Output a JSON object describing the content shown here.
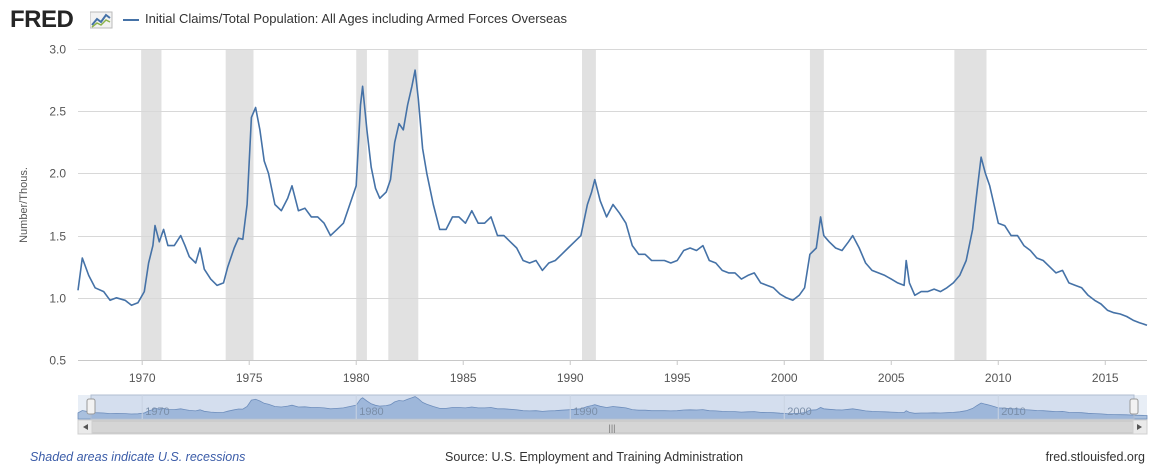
{
  "header": {
    "logo_text": "FRED",
    "legend_label": "Initial Claims/Total Population: All Ages including Armed Forces Overseas"
  },
  "footer": {
    "recession_note": "Shaded areas indicate U.S. recessions",
    "source": "Source: U.S. Employment and Training Administration",
    "site": "fred.stlouisfed.org"
  },
  "colors": {
    "line": "#4572a7",
    "recession": "#e1e1e1",
    "grid": "#d8d8d8",
    "navigator_fill": "#a9c0de"
  },
  "chart_data": {
    "type": "line",
    "title": "",
    "xlabel": "",
    "ylabel": "Number/Thous.",
    "ylim": [
      0.5,
      3.0
    ],
    "xlim": [
      1967.0,
      2016.95
    ],
    "y_ticks": [
      "0.5",
      "1.0",
      "1.5",
      "2.0",
      "2.5",
      "3.0"
    ],
    "x_ticks": [
      "1970",
      "1975",
      "1980",
      "1985",
      "1990",
      "1995",
      "2000",
      "2005",
      "2010",
      "2015"
    ],
    "navigator_ticks": [
      "1970",
      "1980",
      "1990",
      "2000",
      "2010"
    ],
    "grid": "horizontal",
    "recessions": [
      [
        1969.95,
        1970.9
      ],
      [
        1973.9,
        1975.2
      ],
      [
        1980.0,
        1980.5
      ],
      [
        1981.5,
        1982.9
      ],
      [
        1990.55,
        1991.2
      ],
      [
        2001.2,
        2001.85
      ],
      [
        2007.95,
        2009.45
      ]
    ],
    "series": [
      {
        "name": "Initial Claims/Total Population: All Ages including Armed Forces Overseas",
        "points": [
          [
            1967.0,
            1.06
          ],
          [
            1967.2,
            1.32
          ],
          [
            1967.5,
            1.18
          ],
          [
            1967.8,
            1.08
          ],
          [
            1968.2,
            1.05
          ],
          [
            1968.5,
            0.98
          ],
          [
            1968.8,
            1.0
          ],
          [
            1969.2,
            0.98
          ],
          [
            1969.5,
            0.94
          ],
          [
            1969.8,
            0.96
          ],
          [
            1970.1,
            1.05
          ],
          [
            1970.3,
            1.28
          ],
          [
            1970.5,
            1.42
          ],
          [
            1970.6,
            1.58
          ],
          [
            1970.8,
            1.45
          ],
          [
            1971.0,
            1.55
          ],
          [
            1971.2,
            1.42
          ],
          [
            1971.5,
            1.42
          ],
          [
            1971.8,
            1.5
          ],
          [
            1972.0,
            1.42
          ],
          [
            1972.2,
            1.33
          ],
          [
            1972.5,
            1.28
          ],
          [
            1972.7,
            1.4
          ],
          [
            1972.9,
            1.23
          ],
          [
            1973.2,
            1.15
          ],
          [
            1973.5,
            1.1
          ],
          [
            1973.8,
            1.12
          ],
          [
            1974.0,
            1.25
          ],
          [
            1974.3,
            1.4
          ],
          [
            1974.5,
            1.48
          ],
          [
            1974.7,
            1.47
          ],
          [
            1974.9,
            1.75
          ],
          [
            1975.1,
            2.45
          ],
          [
            1975.3,
            2.53
          ],
          [
            1975.5,
            2.35
          ],
          [
            1975.7,
            2.1
          ],
          [
            1975.9,
            2.0
          ],
          [
            1976.2,
            1.75
          ],
          [
            1976.5,
            1.7
          ],
          [
            1976.8,
            1.8
          ],
          [
            1977.0,
            1.9
          ],
          [
            1977.3,
            1.7
          ],
          [
            1977.6,
            1.72
          ],
          [
            1977.9,
            1.65
          ],
          [
            1978.2,
            1.65
          ],
          [
            1978.5,
            1.6
          ],
          [
            1978.8,
            1.5
          ],
          [
            1979.1,
            1.55
          ],
          [
            1979.4,
            1.6
          ],
          [
            1979.7,
            1.75
          ],
          [
            1980.0,
            1.9
          ],
          [
            1980.2,
            2.55
          ],
          [
            1980.3,
            2.7
          ],
          [
            1980.5,
            2.35
          ],
          [
            1980.7,
            2.05
          ],
          [
            1980.9,
            1.88
          ],
          [
            1981.1,
            1.8
          ],
          [
            1981.4,
            1.85
          ],
          [
            1981.6,
            1.95
          ],
          [
            1981.8,
            2.25
          ],
          [
            1982.0,
            2.4
          ],
          [
            1982.2,
            2.35
          ],
          [
            1982.4,
            2.55
          ],
          [
            1982.6,
            2.7
          ],
          [
            1982.75,
            2.83
          ],
          [
            1982.9,
            2.6
          ],
          [
            1983.1,
            2.2
          ],
          [
            1983.3,
            2.0
          ],
          [
            1983.6,
            1.75
          ],
          [
            1983.9,
            1.55
          ],
          [
            1984.2,
            1.55
          ],
          [
            1984.5,
            1.65
          ],
          [
            1984.8,
            1.65
          ],
          [
            1985.1,
            1.6
          ],
          [
            1985.4,
            1.7
          ],
          [
            1985.7,
            1.6
          ],
          [
            1986.0,
            1.6
          ],
          [
            1986.3,
            1.65
          ],
          [
            1986.6,
            1.5
          ],
          [
            1986.9,
            1.5
          ],
          [
            1987.2,
            1.45
          ],
          [
            1987.5,
            1.4
          ],
          [
            1987.8,
            1.3
          ],
          [
            1988.1,
            1.28
          ],
          [
            1988.4,
            1.3
          ],
          [
            1988.7,
            1.22
          ],
          [
            1989.0,
            1.28
          ],
          [
            1989.3,
            1.3
          ],
          [
            1989.6,
            1.35
          ],
          [
            1989.9,
            1.4
          ],
          [
            1990.2,
            1.45
          ],
          [
            1990.5,
            1.5
          ],
          [
            1990.8,
            1.75
          ],
          [
            1991.0,
            1.85
          ],
          [
            1991.15,
            1.95
          ],
          [
            1991.4,
            1.78
          ],
          [
            1991.7,
            1.65
          ],
          [
            1992.0,
            1.75
          ],
          [
            1992.3,
            1.68
          ],
          [
            1992.6,
            1.6
          ],
          [
            1992.9,
            1.42
          ],
          [
            1993.2,
            1.35
          ],
          [
            1993.5,
            1.35
          ],
          [
            1993.8,
            1.3
          ],
          [
            1994.1,
            1.3
          ],
          [
            1994.4,
            1.3
          ],
          [
            1994.7,
            1.28
          ],
          [
            1995.0,
            1.3
          ],
          [
            1995.3,
            1.38
          ],
          [
            1995.6,
            1.4
          ],
          [
            1995.9,
            1.38
          ],
          [
            1996.2,
            1.42
          ],
          [
            1996.5,
            1.3
          ],
          [
            1996.8,
            1.28
          ],
          [
            1997.1,
            1.22
          ],
          [
            1997.4,
            1.2
          ],
          [
            1997.7,
            1.2
          ],
          [
            1998.0,
            1.15
          ],
          [
            1998.3,
            1.18
          ],
          [
            1998.6,
            1.2
          ],
          [
            1998.9,
            1.12
          ],
          [
            1999.2,
            1.1
          ],
          [
            1999.5,
            1.08
          ],
          [
            1999.8,
            1.03
          ],
          [
            2000.1,
            1.0
          ],
          [
            2000.4,
            0.98
          ],
          [
            2000.7,
            1.02
          ],
          [
            2000.95,
            1.08
          ],
          [
            2001.2,
            1.35
          ],
          [
            2001.5,
            1.4
          ],
          [
            2001.7,
            1.65
          ],
          [
            2001.85,
            1.5
          ],
          [
            2002.1,
            1.45
          ],
          [
            2002.4,
            1.4
          ],
          [
            2002.7,
            1.38
          ],
          [
            2003.0,
            1.45
          ],
          [
            2003.2,
            1.5
          ],
          [
            2003.5,
            1.4
          ],
          [
            2003.8,
            1.28
          ],
          [
            2004.1,
            1.22
          ],
          [
            2004.4,
            1.2
          ],
          [
            2004.7,
            1.18
          ],
          [
            2005.0,
            1.15
          ],
          [
            2005.3,
            1.12
          ],
          [
            2005.6,
            1.1
          ],
          [
            2005.7,
            1.3
          ],
          [
            2005.85,
            1.12
          ],
          [
            2006.1,
            1.02
          ],
          [
            2006.4,
            1.05
          ],
          [
            2006.7,
            1.05
          ],
          [
            2007.0,
            1.07
          ],
          [
            2007.3,
            1.05
          ],
          [
            2007.6,
            1.08
          ],
          [
            2007.9,
            1.12
          ],
          [
            2008.2,
            1.18
          ],
          [
            2008.5,
            1.3
          ],
          [
            2008.8,
            1.55
          ],
          [
            2009.0,
            1.85
          ],
          [
            2009.2,
            2.13
          ],
          [
            2009.4,
            2.0
          ],
          [
            2009.6,
            1.9
          ],
          [
            2009.8,
            1.75
          ],
          [
            2010.0,
            1.6
          ],
          [
            2010.3,
            1.58
          ],
          [
            2010.6,
            1.5
          ],
          [
            2010.9,
            1.5
          ],
          [
            2011.2,
            1.42
          ],
          [
            2011.5,
            1.38
          ],
          [
            2011.8,
            1.32
          ],
          [
            2012.1,
            1.3
          ],
          [
            2012.4,
            1.25
          ],
          [
            2012.7,
            1.2
          ],
          [
            2013.0,
            1.22
          ],
          [
            2013.3,
            1.12
          ],
          [
            2013.6,
            1.1
          ],
          [
            2013.9,
            1.08
          ],
          [
            2014.2,
            1.02
          ],
          [
            2014.5,
            0.98
          ],
          [
            2014.8,
            0.95
          ],
          [
            2015.1,
            0.9
          ],
          [
            2015.4,
            0.88
          ],
          [
            2015.7,
            0.87
          ],
          [
            2016.0,
            0.85
          ],
          [
            2016.3,
            0.82
          ],
          [
            2016.6,
            0.8
          ],
          [
            2016.95,
            0.78
          ]
        ]
      }
    ]
  }
}
